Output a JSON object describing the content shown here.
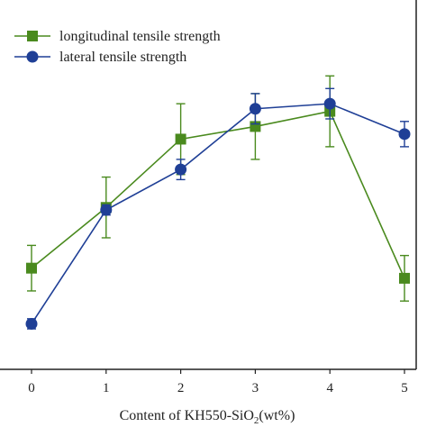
{
  "chart_data": {
    "type": "line",
    "x": [
      0,
      1,
      2,
      3,
      4,
      5
    ],
    "xlabel_main": "Content of KH550-SiO",
    "xlabel_sub": "2",
    "xlabel_tail": "(wt%)",
    "ylabel": "",
    "y_ticks_shown": false,
    "grid": false,
    "legend_placement": "top-left",
    "series": [
      {
        "name": "longitudinal tensile strength",
        "marker": "square",
        "color": "#4a8a1e",
        "values": [
          40.0,
          52.0,
          65.5,
          68.0,
          71.0,
          38.0
        ],
        "errors": [
          4.5,
          6.0,
          7.0,
          6.5,
          7.0,
          4.5
        ]
      },
      {
        "name": "lateral tensile strength",
        "marker": "circle",
        "color": "#1f3f96",
        "values": [
          29.0,
          51.5,
          59.5,
          71.5,
          72.5,
          66.5
        ],
        "errors": [
          1.0,
          1.0,
          2.0,
          3.0,
          3.0,
          2.5
        ]
      }
    ],
    "xlim": [
      -0.2,
      5.3
    ],
    "ylim": [
      20,
      93
    ]
  }
}
